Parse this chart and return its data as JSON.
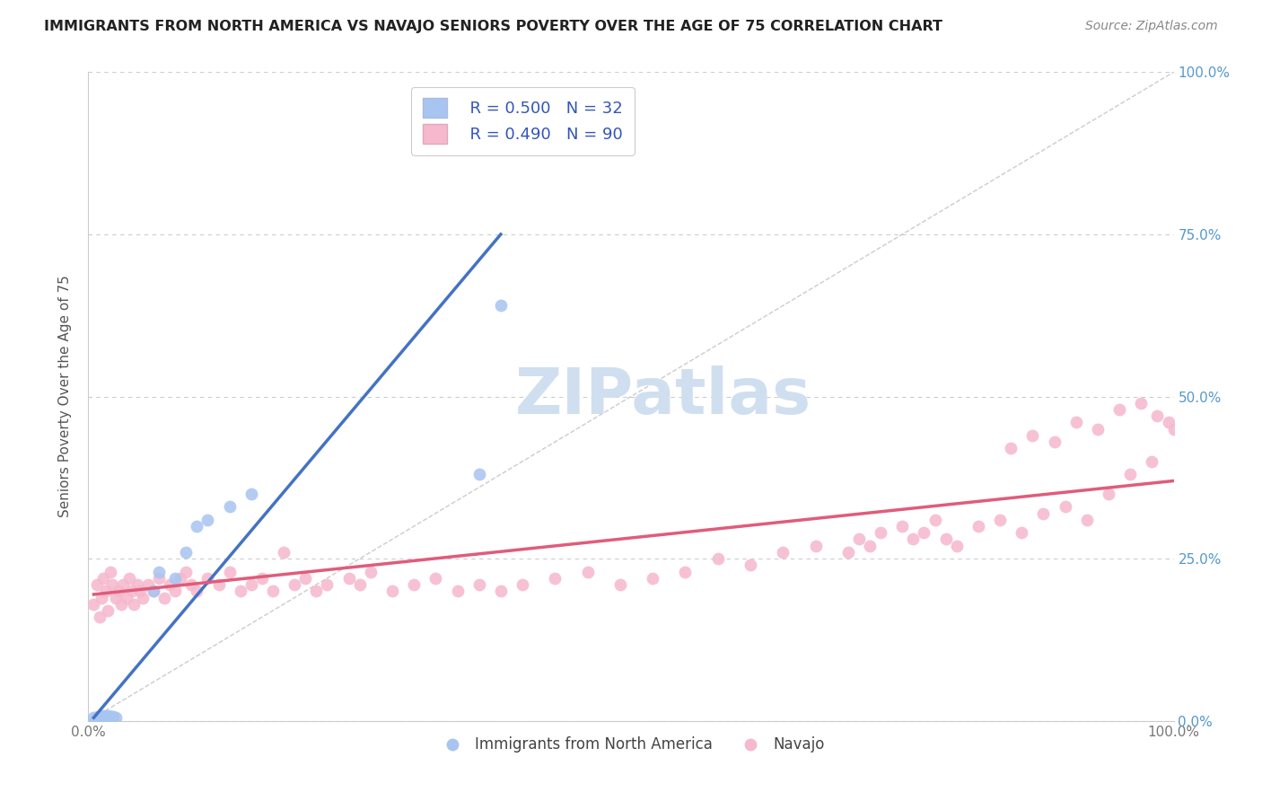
{
  "title": "IMMIGRANTS FROM NORTH AMERICA VS NAVAJO SENIORS POVERTY OVER THE AGE OF 75 CORRELATION CHART",
  "source": "Source: ZipAtlas.com",
  "ylabel": "Seniors Poverty Over the Age of 75",
  "xlim": [
    0.0,
    1.0
  ],
  "ylim": [
    0.0,
    1.0
  ],
  "ytick_labels": [
    "0.0%",
    "25.0%",
    "50.0%",
    "75.0%",
    "100.0%"
  ],
  "ytick_positions": [
    0.0,
    0.25,
    0.5,
    0.75,
    1.0
  ],
  "blue_legend": "R = 0.500   N = 32",
  "pink_legend": "R = 0.490   N = 90",
  "blue_label": "Immigrants from North America",
  "pink_label": "Navajo",
  "blue_color": "#a8c4f0",
  "pink_color": "#f5b8cc",
  "blue_line_color": "#4472c4",
  "pink_line_color": "#e05c7a",
  "legend_text_color": "#3355bb",
  "title_color": "#222222",
  "grid_color": "#cccccc",
  "background_color": "#ffffff",
  "blue_scatter_x": [
    0.005,
    0.007,
    0.008,
    0.009,
    0.01,
    0.01,
    0.011,
    0.012,
    0.013,
    0.014,
    0.015,
    0.015,
    0.016,
    0.017,
    0.018,
    0.018,
    0.019,
    0.02,
    0.021,
    0.022,
    0.023,
    0.025,
    0.06,
    0.065,
    0.08,
    0.09,
    0.1,
    0.11,
    0.13,
    0.15,
    0.36,
    0.38
  ],
  "blue_scatter_y": [
    0.005,
    0.003,
    0.004,
    0.006,
    0.005,
    0.007,
    0.004,
    0.006,
    0.005,
    0.008,
    0.004,
    0.007,
    0.005,
    0.006,
    0.004,
    0.008,
    0.005,
    0.006,
    0.007,
    0.005,
    0.006,
    0.005,
    0.2,
    0.23,
    0.22,
    0.26,
    0.3,
    0.31,
    0.33,
    0.35,
    0.38,
    0.64
  ],
  "pink_scatter_x": [
    0.005,
    0.008,
    0.01,
    0.012,
    0.014,
    0.016,
    0.018,
    0.02,
    0.022,
    0.025,
    0.028,
    0.03,
    0.032,
    0.035,
    0.038,
    0.04,
    0.042,
    0.045,
    0.048,
    0.05,
    0.055,
    0.06,
    0.065,
    0.07,
    0.075,
    0.08,
    0.085,
    0.09,
    0.095,
    0.1,
    0.11,
    0.12,
    0.13,
    0.14,
    0.15,
    0.16,
    0.17,
    0.18,
    0.19,
    0.2,
    0.21,
    0.22,
    0.24,
    0.25,
    0.26,
    0.28,
    0.3,
    0.32,
    0.34,
    0.36,
    0.38,
    0.4,
    0.43,
    0.46,
    0.49,
    0.52,
    0.55,
    0.58,
    0.61,
    0.64,
    0.67,
    0.7,
    0.71,
    0.72,
    0.73,
    0.75,
    0.76,
    0.77,
    0.78,
    0.79,
    0.8,
    0.82,
    0.84,
    0.86,
    0.88,
    0.9,
    0.92,
    0.94,
    0.96,
    0.98,
    0.85,
    0.87,
    0.89,
    0.91,
    0.93,
    0.95,
    0.97,
    0.985,
    0.995,
    1.0
  ],
  "pink_scatter_y": [
    0.18,
    0.21,
    0.16,
    0.19,
    0.22,
    0.2,
    0.17,
    0.23,
    0.21,
    0.19,
    0.2,
    0.18,
    0.21,
    0.19,
    0.22,
    0.2,
    0.18,
    0.21,
    0.2,
    0.19,
    0.21,
    0.2,
    0.22,
    0.19,
    0.21,
    0.2,
    0.22,
    0.23,
    0.21,
    0.2,
    0.22,
    0.21,
    0.23,
    0.2,
    0.21,
    0.22,
    0.2,
    0.26,
    0.21,
    0.22,
    0.2,
    0.21,
    0.22,
    0.21,
    0.23,
    0.2,
    0.21,
    0.22,
    0.2,
    0.21,
    0.2,
    0.21,
    0.22,
    0.23,
    0.21,
    0.22,
    0.23,
    0.25,
    0.24,
    0.26,
    0.27,
    0.26,
    0.28,
    0.27,
    0.29,
    0.3,
    0.28,
    0.29,
    0.31,
    0.28,
    0.27,
    0.3,
    0.31,
    0.29,
    0.32,
    0.33,
    0.31,
    0.35,
    0.38,
    0.4,
    0.42,
    0.44,
    0.43,
    0.46,
    0.45,
    0.48,
    0.49,
    0.47,
    0.46,
    0.45
  ],
  "blue_line_points": [
    [
      0.005,
      0.005
    ],
    [
      0.38,
      0.75
    ]
  ],
  "pink_line_points": [
    [
      0.005,
      0.195
    ],
    [
      1.0,
      0.37
    ]
  ],
  "diag_line_color": "#cccccc",
  "diag_line_style": "--",
  "watermark_text": "ZIPatlas",
  "watermark_color": "#d0dff0"
}
